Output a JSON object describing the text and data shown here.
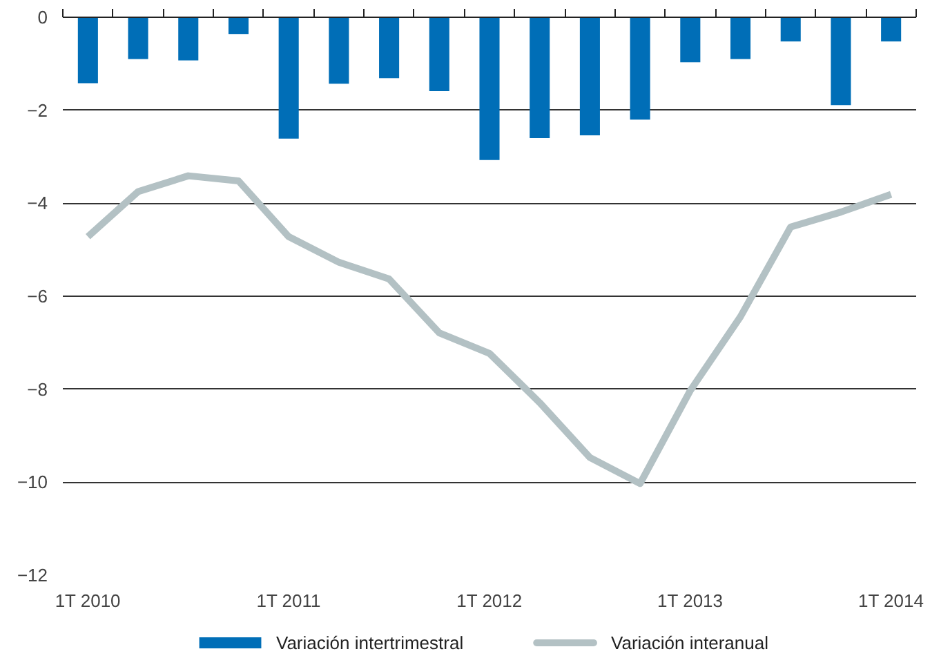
{
  "chart_data": {
    "type": "bar",
    "categories": [
      "1T 2010",
      null,
      null,
      null,
      "1T 2011",
      null,
      null,
      null,
      "1T 2012",
      null,
      null,
      null,
      "1T 2013",
      null,
      null,
      null,
      "1T 2014"
    ],
    "series": [
      {
        "name": "Variación intertrimestral",
        "color": "#006eb7",
        "values": [
          -1.42,
          -0.9,
          -0.93,
          -0.36,
          -2.61,
          -1.43,
          -1.31,
          -1.59,
          -3.07,
          -2.6,
          -2.54,
          -2.2,
          -0.97,
          -0.9,
          -0.52,
          -1.89,
          -0.52
        ]
      },
      {
        "name": "Variación interanual",
        "color": "#b3c1c4",
        "type": "line",
        "values": [
          -4.72,
          -3.75,
          -3.41,
          -3.52,
          -4.72,
          -5.27,
          -5.63,
          -6.79,
          -7.23,
          -8.29,
          -9.47,
          -10.03,
          -8.03,
          -6.44,
          -4.51,
          -4.19,
          -3.81
        ]
      }
    ],
    "ylim": [
      -12,
      0
    ],
    "yticks": [
      0,
      -2,
      -4,
      -6,
      -8,
      -10,
      -12
    ],
    "grid": "y",
    "legend": "bottom",
    "marker": "none",
    "line_style": "solid"
  }
}
